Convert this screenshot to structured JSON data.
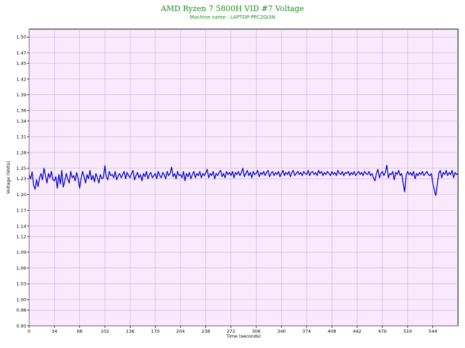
{
  "chart_data": {
    "type": "line",
    "title": "AMD Ryzen 7 5800H VID #7 Voltage",
    "subtitle": "Machine name : LAPTOP-PPC2QI3N",
    "xlabel": "Time (seconds)",
    "ylabel": "Voltage (Volts)",
    "xlim": [
      0,
      578
    ],
    "ylim": [
      0.95,
      1.515
    ],
    "x_ticks": [
      "0",
      "34",
      "68",
      "102",
      "136",
      "170",
      "204",
      "238",
      "272",
      "306",
      "340",
      "374",
      "408",
      "442",
      "476",
      "510",
      "544"
    ],
    "x_tick_values": [
      0,
      34,
      68,
      102,
      136,
      170,
      204,
      238,
      272,
      306,
      340,
      374,
      408,
      442,
      476,
      510,
      544
    ],
    "y_ticks": [
      "0.95",
      "0.98",
      "1.00",
      "1.03",
      "1.06",
      "1.09",
      "1.12",
      "1.14",
      "1.17",
      "1.20",
      "1.23",
      "1.25",
      "1.28",
      "1.31",
      "1.34",
      "1.36",
      "1.39",
      "1.42",
      "1.45",
      "1.47",
      "1.50"
    ],
    "y_tick_values": [
      0.95,
      0.98,
      1.0,
      1.03,
      1.06,
      1.09,
      1.12,
      1.14,
      1.17,
      1.2,
      1.23,
      1.25,
      1.28,
      1.31,
      1.34,
      1.36,
      1.39,
      1.42,
      1.45,
      1.47,
      1.5
    ],
    "grid": true,
    "colors": {
      "plot_background": "#f8eafc",
      "grid": "#c8a8d8",
      "line": "#0000cc",
      "title": "#1a8a1a"
    },
    "series": [
      {
        "values": [
          [
            0,
            1.237
          ],
          [
            2,
            1.23
          ],
          [
            4,
            1.243
          ],
          [
            6,
            1.218
          ],
          [
            8,
            1.21
          ],
          [
            10,
            1.228
          ],
          [
            12,
            1.215
          ],
          [
            14,
            1.232
          ],
          [
            16,
            1.24
          ],
          [
            18,
            1.228
          ],
          [
            20,
            1.25
          ],
          [
            22,
            1.236
          ],
          [
            24,
            1.222
          ],
          [
            26,
            1.24
          ],
          [
            28,
            1.232
          ],
          [
            30,
            1.244
          ],
          [
            32,
            1.228
          ],
          [
            34,
            1.226
          ],
          [
            36,
            1.234
          ],
          [
            38,
            1.212
          ],
          [
            40,
            1.238
          ],
          [
            42,
            1.22
          ],
          [
            44,
            1.246
          ],
          [
            46,
            1.214
          ],
          [
            48,
            1.226
          ],
          [
            50,
            1.24
          ],
          [
            52,
            1.23
          ],
          [
            54,
            1.222
          ],
          [
            56,
            1.244
          ],
          [
            58,
            1.232
          ],
          [
            60,
            1.236
          ],
          [
            62,
            1.226
          ],
          [
            64,
            1.242
          ],
          [
            66,
            1.23
          ],
          [
            68,
            1.212
          ],
          [
            70,
            1.23
          ],
          [
            72,
            1.244
          ],
          [
            74,
            1.234
          ],
          [
            76,
            1.222
          ],
          [
            78,
            1.238
          ],
          [
            80,
            1.23
          ],
          [
            82,
            1.246
          ],
          [
            84,
            1.228
          ],
          [
            86,
            1.236
          ],
          [
            88,
            1.224
          ],
          [
            90,
            1.24
          ],
          [
            92,
            1.232
          ],
          [
            94,
            1.222
          ],
          [
            96,
            1.238
          ],
          [
            98,
            1.23
          ],
          [
            100,
            1.232
          ],
          [
            102,
            1.255
          ],
          [
            104,
            1.234
          ],
          [
            106,
            1.228
          ],
          [
            108,
            1.244
          ],
          [
            110,
            1.236
          ],
          [
            112,
            1.238
          ],
          [
            114,
            1.232
          ],
          [
            116,
            1.244
          ],
          [
            118,
            1.228
          ],
          [
            120,
            1.236
          ],
          [
            122,
            1.24
          ],
          [
            124,
            1.232
          ],
          [
            126,
            1.238
          ],
          [
            128,
            1.244
          ],
          [
            130,
            1.23
          ],
          [
            132,
            1.242
          ],
          [
            134,
            1.236
          ],
          [
            136,
            1.232
          ],
          [
            138,
            1.24
          ],
          [
            140,
            1.246
          ],
          [
            142,
            1.228
          ],
          [
            144,
            1.236
          ],
          [
            146,
            1.242
          ],
          [
            148,
            1.232
          ],
          [
            150,
            1.238
          ],
          [
            152,
            1.226
          ],
          [
            154,
            1.24
          ],
          [
            156,
            1.234
          ],
          [
            158,
            1.244
          ],
          [
            160,
            1.23
          ],
          [
            162,
            1.238
          ],
          [
            164,
            1.242
          ],
          [
            166,
            1.232
          ],
          [
            168,
            1.236
          ],
          [
            170,
            1.24
          ],
          [
            172,
            1.23
          ],
          [
            174,
            1.244
          ],
          [
            176,
            1.236
          ],
          [
            178,
            1.232
          ],
          [
            180,
            1.242
          ],
          [
            182,
            1.238
          ],
          [
            184,
            1.23
          ],
          [
            186,
            1.244
          ],
          [
            188,
            1.236
          ],
          [
            190,
            1.24
          ],
          [
            192,
            1.252
          ],
          [
            194,
            1.234
          ],
          [
            196,
            1.24
          ],
          [
            198,
            1.23
          ],
          [
            200,
            1.244
          ],
          [
            202,
            1.236
          ],
          [
            204,
            1.238
          ],
          [
            206,
            1.232
          ],
          [
            208,
            1.244
          ],
          [
            210,
            1.226
          ],
          [
            212,
            1.24
          ],
          [
            214,
            1.234
          ],
          [
            216,
            1.242
          ],
          [
            218,
            1.23
          ],
          [
            220,
            1.238
          ],
          [
            222,
            1.244
          ],
          [
            224,
            1.232
          ],
          [
            226,
            1.24
          ],
          [
            228,
            1.236
          ],
          [
            230,
            1.244
          ],
          [
            232,
            1.232
          ],
          [
            234,
            1.24
          ],
          [
            236,
            1.236
          ],
          [
            238,
            1.242
          ],
          [
            240,
            1.248
          ],
          [
            242,
            1.232
          ],
          [
            244,
            1.24
          ],
          [
            246,
            1.236
          ],
          [
            248,
            1.244
          ],
          [
            250,
            1.23
          ],
          [
            252,
            1.24
          ],
          [
            254,
            1.236
          ],
          [
            256,
            1.242
          ],
          [
            258,
            1.246
          ],
          [
            260,
            1.234
          ],
          [
            262,
            1.24
          ],
          [
            264,
            1.232
          ],
          [
            266,
            1.244
          ],
          [
            268,
            1.238
          ],
          [
            270,
            1.242
          ],
          [
            272,
            1.236
          ],
          [
            274,
            1.244
          ],
          [
            276,
            1.232
          ],
          [
            278,
            1.242
          ],
          [
            280,
            1.238
          ],
          [
            282,
            1.244
          ],
          [
            284,
            1.236
          ],
          [
            286,
            1.242
          ],
          [
            288,
            1.25
          ],
          [
            290,
            1.234
          ],
          [
            292,
            1.24
          ],
          [
            294,
            1.246
          ],
          [
            296,
            1.236
          ],
          [
            298,
            1.242
          ],
          [
            300,
            1.232
          ],
          [
            302,
            1.244
          ],
          [
            304,
            1.238
          ],
          [
            306,
            1.24
          ],
          [
            308,
            1.246
          ],
          [
            310,
            1.234
          ],
          [
            312,
            1.242
          ],
          [
            314,
            1.238
          ],
          [
            316,
            1.244
          ],
          [
            318,
            1.236
          ],
          [
            320,
            1.242
          ],
          [
            322,
            1.246
          ],
          [
            324,
            1.234
          ],
          [
            326,
            1.24
          ],
          [
            328,
            1.244
          ],
          [
            330,
            1.236
          ],
          [
            332,
            1.242
          ],
          [
            334,
            1.238
          ],
          [
            336,
            1.244
          ],
          [
            338,
            1.234
          ],
          [
            340,
            1.24
          ],
          [
            342,
            1.246
          ],
          [
            344,
            1.236
          ],
          [
            346,
            1.242
          ],
          [
            348,
            1.238
          ],
          [
            350,
            1.244
          ],
          [
            352,
            1.234
          ],
          [
            354,
            1.242
          ],
          [
            356,
            1.246
          ],
          [
            358,
            1.236
          ],
          [
            360,
            1.24
          ],
          [
            362,
            1.244
          ],
          [
            364,
            1.238
          ],
          [
            366,
            1.242
          ],
          [
            368,
            1.236
          ],
          [
            370,
            1.244
          ],
          [
            372,
            1.24
          ],
          [
            374,
            1.238
          ],
          [
            376,
            1.246
          ],
          [
            378,
            1.236
          ],
          [
            380,
            1.242
          ],
          [
            382,
            1.244
          ],
          [
            384,
            1.238
          ],
          [
            386,
            1.242
          ],
          [
            388,
            1.236
          ],
          [
            390,
            1.246
          ],
          [
            392,
            1.24
          ],
          [
            394,
            1.244
          ],
          [
            396,
            1.236
          ],
          [
            398,
            1.242
          ],
          [
            400,
            1.238
          ],
          [
            402,
            1.244
          ],
          [
            404,
            1.24
          ],
          [
            406,
            1.236
          ],
          [
            408,
            1.244
          ],
          [
            410,
            1.238
          ],
          [
            412,
            1.242
          ],
          [
            414,
            1.236
          ],
          [
            416,
            1.246
          ],
          [
            418,
            1.24
          ],
          [
            420,
            1.238
          ],
          [
            422,
            1.244
          ],
          [
            424,
            1.236
          ],
          [
            426,
            1.242
          ],
          [
            428,
            1.24
          ],
          [
            430,
            1.244
          ],
          [
            432,
            1.236
          ],
          [
            434,
            1.242
          ],
          [
            436,
            1.238
          ],
          [
            438,
            1.244
          ],
          [
            440,
            1.236
          ],
          [
            442,
            1.24
          ],
          [
            444,
            1.244
          ],
          [
            446,
            1.238
          ],
          [
            448,
            1.242
          ],
          [
            450,
            1.236
          ],
          [
            452,
            1.244
          ],
          [
            454,
            1.24
          ],
          [
            456,
            1.238
          ],
          [
            458,
            1.244
          ],
          [
            460,
            1.236
          ],
          [
            462,
            1.24
          ],
          [
            464,
            1.232
          ],
          [
            466,
            1.226
          ],
          [
            468,
            1.24
          ],
          [
            470,
            1.248
          ],
          [
            472,
            1.232
          ],
          [
            474,
            1.24
          ],
          [
            476,
            1.244
          ],
          [
            478,
            1.236
          ],
          [
            480,
            1.242
          ],
          [
            482,
            1.256
          ],
          [
            484,
            1.232
          ],
          [
            486,
            1.24
          ],
          [
            488,
            1.238
          ],
          [
            490,
            1.244
          ],
          [
            492,
            1.228
          ],
          [
            494,
            1.242
          ],
          [
            496,
            1.238
          ],
          [
            498,
            1.246
          ],
          [
            500,
            1.236
          ],
          [
            502,
            1.24
          ],
          [
            504,
            1.222
          ],
          [
            506,
            1.205
          ],
          [
            508,
            1.236
          ],
          [
            510,
            1.244
          ],
          [
            512,
            1.238
          ],
          [
            514,
            1.242
          ],
          [
            516,
            1.236
          ],
          [
            518,
            1.244
          ],
          [
            520,
            1.23
          ],
          [
            522,
            1.24
          ],
          [
            524,
            1.236
          ],
          [
            526,
            1.242
          ],
          [
            528,
            1.238
          ],
          [
            530,
            1.244
          ],
          [
            532,
            1.236
          ],
          [
            534,
            1.24
          ],
          [
            536,
            1.244
          ],
          [
            538,
            1.238
          ],
          [
            540,
            1.236
          ],
          [
            542,
            1.24
          ],
          [
            544,
            1.222
          ],
          [
            546,
            1.208
          ],
          [
            548,
            1.198
          ],
          [
            550,
            1.22
          ],
          [
            552,
            1.24
          ],
          [
            554,
            1.246
          ],
          [
            556,
            1.232
          ],
          [
            558,
            1.242
          ],
          [
            560,
            1.238
          ],
          [
            562,
            1.246
          ],
          [
            564,
            1.236
          ],
          [
            566,
            1.242
          ],
          [
            568,
            1.238
          ],
          [
            570,
            1.246
          ],
          [
            572,
            1.232
          ],
          [
            574,
            1.242
          ],
          [
            576,
            1.238
          ],
          [
            578,
            1.24
          ]
        ]
      }
    ]
  }
}
